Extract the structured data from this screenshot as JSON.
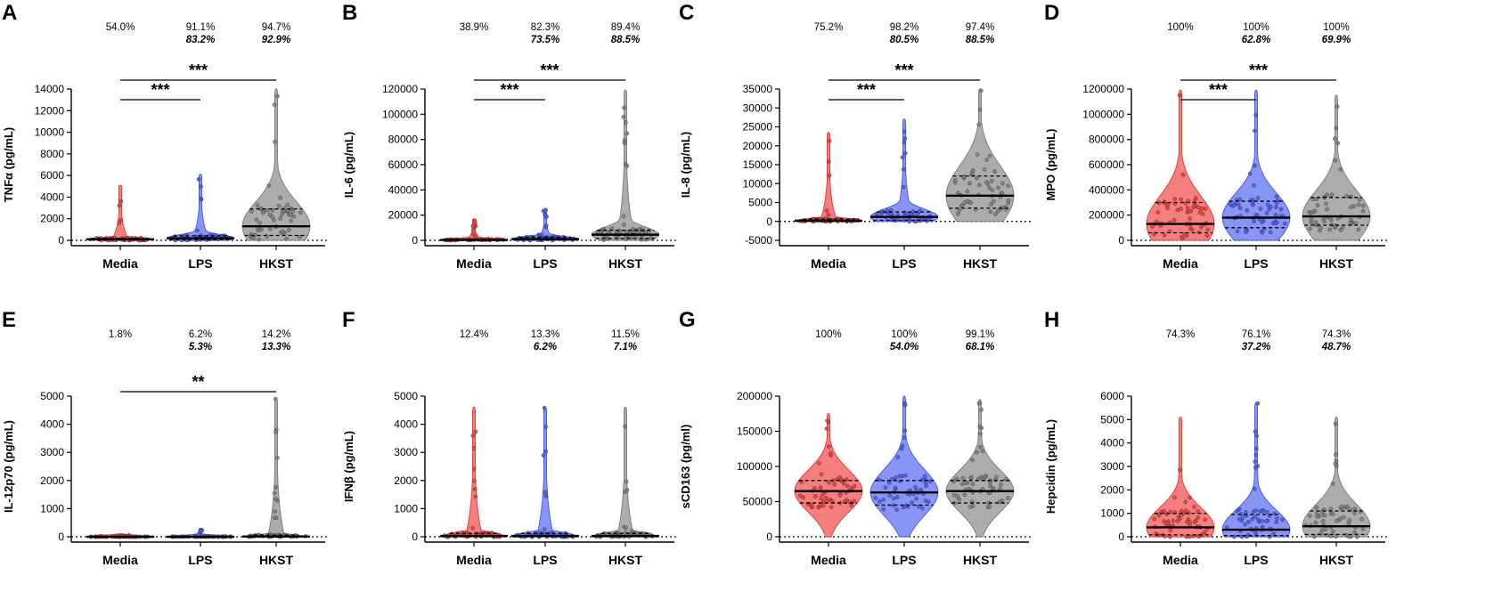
{
  "colors": {
    "media": "#ef3b3b",
    "lps": "#4a5cf0",
    "hkst": "#808080",
    "axis": "#000000"
  },
  "chart_data": [
    {
      "panel": "A",
      "type": "violin",
      "ylabel": "TNFα (pg/mL)",
      "ylim": [
        0,
        14000
      ],
      "yticks": [
        "0",
        "2000",
        "4000",
        "6000",
        "8000",
        "10000",
        "12000",
        "14000"
      ],
      "categories": [
        "Media",
        "LPS",
        "HKST"
      ],
      "detection_pct": [
        "54.0%",
        "91.1%",
        "94.7%"
      ],
      "detection_pct_italic": [
        "",
        "83.2%",
        "92.9%"
      ],
      "medians": [
        100,
        200,
        1300
      ],
      "q1": [
        20,
        60,
        450
      ],
      "q3": [
        180,
        420,
        2900
      ],
      "max": [
        5100,
        6100,
        14000
      ],
      "significance": [
        {
          "from": "Media",
          "to": "LPS",
          "label": "***"
        },
        {
          "from": "Media",
          "to": "HKST",
          "label": "***"
        }
      ]
    },
    {
      "panel": "B",
      "type": "violin",
      "ylabel": "IL-6 (pg/mL)",
      "ylim": [
        0,
        120000
      ],
      "yticks": [
        "0",
        "20000",
        "40000",
        "60000",
        "80000",
        "100000",
        "120000"
      ],
      "categories": [
        "Media",
        "LPS",
        "HKST"
      ],
      "detection_pct": [
        "38.9%",
        "82.3%",
        "89.4%"
      ],
      "detection_pct_italic": [
        "",
        "73.5%",
        "88.5%"
      ],
      "medians": [
        300,
        1000,
        4500
      ],
      "q1": [
        80,
        250,
        1500
      ],
      "q3": [
        800,
        2500,
        8000
      ],
      "max": [
        17000,
        25000,
        119000
      ],
      "significance": [
        {
          "from": "Media",
          "to": "LPS",
          "label": "***"
        },
        {
          "from": "Media",
          "to": "HKST",
          "label": "***"
        }
      ]
    },
    {
      "panel": "C",
      "type": "violin",
      "ylabel": "IL-8 (pg/mL)",
      "ylim": [
        -5000,
        35000
      ],
      "yticks": [
        "-5000",
        "0",
        "5000",
        "10000",
        "15000",
        "20000",
        "25000",
        "30000",
        "35000"
      ],
      "categories": [
        "Media",
        "LPS",
        "HKST"
      ],
      "detection_pct": [
        "75.2%",
        "98.2%",
        "97.4%"
      ],
      "detection_pct_italic": [
        "",
        "80.5%",
        "88.5%"
      ],
      "medians": [
        200,
        1200,
        6800
      ],
      "q1": [
        0,
        300,
        3500
      ],
      "q3": [
        600,
        2500,
        12000
      ],
      "max": [
        23500,
        27000,
        35000
      ],
      "significance": [
        {
          "from": "Media",
          "to": "LPS",
          "label": "***"
        },
        {
          "from": "Media",
          "to": "HKST",
          "label": "***"
        }
      ]
    },
    {
      "panel": "D",
      "type": "violin",
      "ylabel": "MPO (pg/mL)",
      "ylim": [
        0,
        1200000
      ],
      "yticks": [
        "0",
        "200000",
        "400000",
        "600000",
        "800000",
        "1000000",
        "1200000"
      ],
      "categories": [
        "Media",
        "LPS",
        "HKST"
      ],
      "detection_pct": [
        "100%",
        "100%",
        "100%"
      ],
      "detection_pct_italic": [
        "",
        "62.8%",
        "69.9%"
      ],
      "medians": [
        130000,
        180000,
        190000
      ],
      "q1": [
        60000,
        100000,
        120000
      ],
      "q3": [
        300000,
        310000,
        340000
      ],
      "max": [
        1190000,
        1190000,
        1150000
      ],
      "significance": [
        {
          "from": "Media",
          "to": "LPS",
          "label": "***"
        },
        {
          "from": "Media",
          "to": "HKST",
          "label": "***"
        }
      ]
    },
    {
      "panel": "E",
      "type": "violin",
      "ylabel": "IL-12p70 (pg/mL)",
      "ylim": [
        0,
        5000
      ],
      "yticks": [
        "0",
        "1000",
        "2000",
        "3000",
        "4000",
        "5000"
      ],
      "categories": [
        "Media",
        "LPS",
        "HKST"
      ],
      "detection_pct": [
        "1.8%",
        "6.2%",
        "14.2%"
      ],
      "detection_pct_italic": [
        "",
        "5.3%",
        "13.3%"
      ],
      "medians": [
        0,
        0,
        10
      ],
      "q1": [
        0,
        0,
        0
      ],
      "q3": [
        5,
        10,
        60
      ],
      "max": [
        100,
        300,
        4900
      ],
      "significance": [
        {
          "from": "Media",
          "to": "HKST",
          "label": "**"
        }
      ]
    },
    {
      "panel": "F",
      "type": "violin",
      "ylabel": "IFNβ (pg/mL)",
      "ylim": [
        0,
        5000
      ],
      "yticks": [
        "0",
        "1000",
        "2000",
        "3000",
        "4000",
        "5000"
      ],
      "categories": [
        "Media",
        "LPS",
        "HKST"
      ],
      "detection_pct": [
        "12.4%",
        "13.3%",
        "11.5%"
      ],
      "detection_pct_italic": [
        "",
        "6.2%",
        "7.1%"
      ],
      "medians": [
        30,
        30,
        30
      ],
      "q1": [
        0,
        0,
        0
      ],
      "q3": [
        120,
        120,
        120
      ],
      "max": [
        4600,
        4600,
        4600
      ],
      "significance": []
    },
    {
      "panel": "G",
      "type": "violin",
      "ylabel": "sCD163 (pg/ml)",
      "ylim": [
        0,
        200000
      ],
      "yticks": [
        "0",
        "50000",
        "100000",
        "150000",
        "200000"
      ],
      "categories": [
        "Media",
        "LPS",
        "HKST"
      ],
      "detection_pct": [
        "100%",
        "100%",
        "99.1%"
      ],
      "detection_pct_italic": [
        "",
        "54.0%",
        "68.1%"
      ],
      "medians": [
        65000,
        63000,
        65000
      ],
      "q1": [
        48000,
        45000,
        48000
      ],
      "q3": [
        80000,
        80000,
        80000
      ],
      "max": [
        175000,
        200000,
        195000
      ],
      "significance": []
    },
    {
      "panel": "H",
      "type": "violin",
      "ylabel": "Hepcidin (pg/mL)",
      "ylim": [
        0,
        6000
      ],
      "yticks": [
        "0",
        "1000",
        "2000",
        "3000",
        "4000",
        "5000",
        "6000"
      ],
      "categories": [
        "Media",
        "LPS",
        "HKST"
      ],
      "detection_pct": [
        "74.3%",
        "76.1%",
        "74.3%"
      ],
      "detection_pct_italic": [
        "",
        "37.2%",
        "48.7%"
      ],
      "medians": [
        400,
        300,
        450
      ],
      "q1": [
        80,
        50,
        100
      ],
      "q3": [
        1000,
        950,
        1100
      ],
      "max": [
        5100,
        5700,
        5100
      ],
      "significance": []
    }
  ]
}
